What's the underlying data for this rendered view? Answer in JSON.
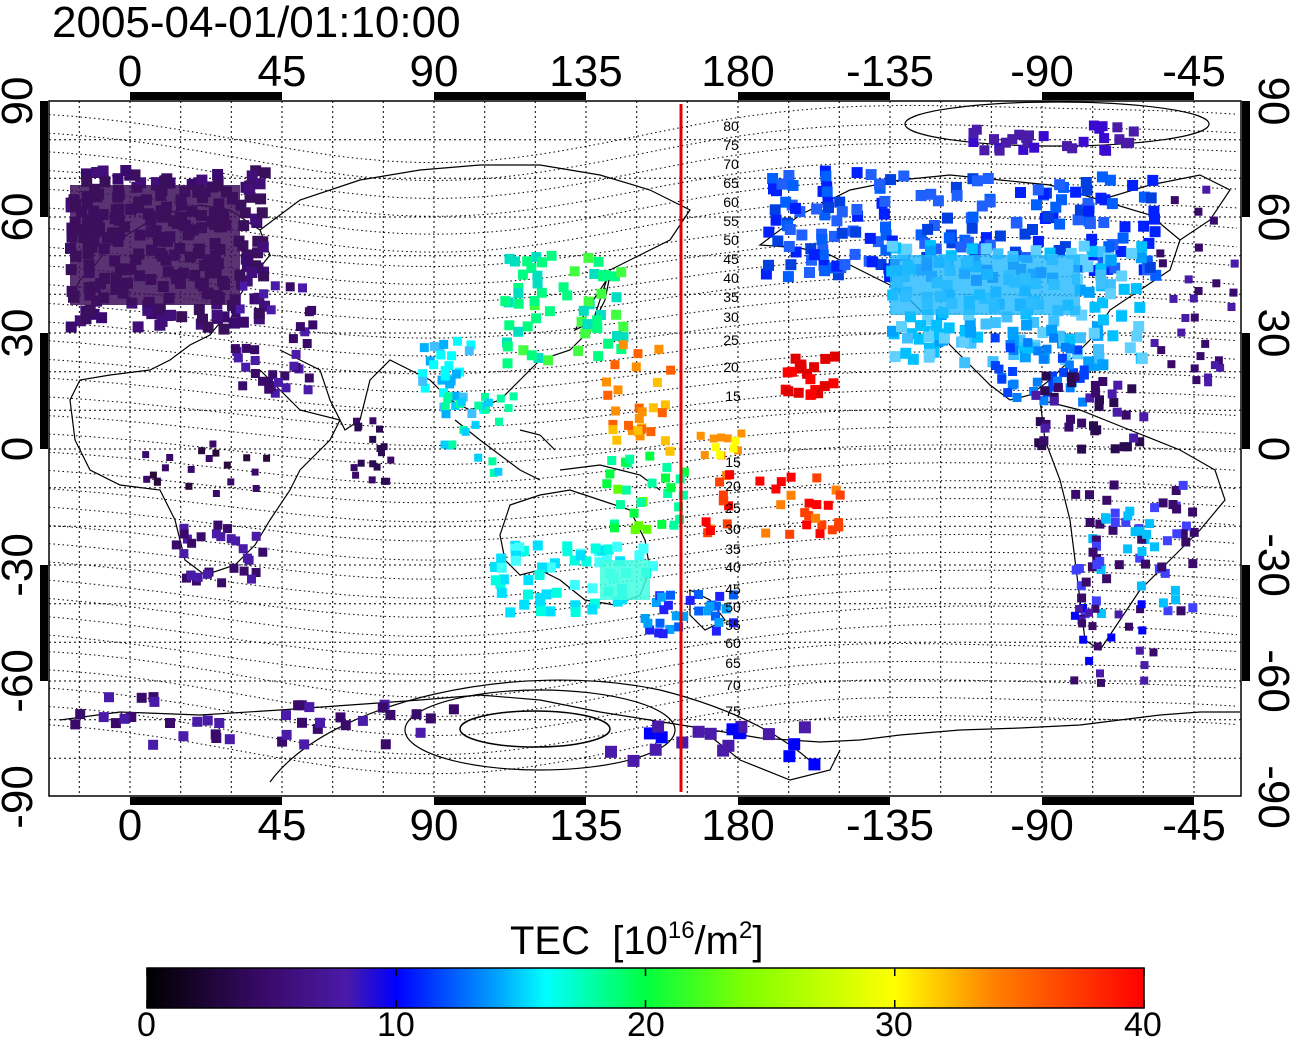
{
  "map": {
    "timestamp": "2005-04-01/01:10:00",
    "lon_ticks": [
      "0",
      "45",
      "90",
      "135",
      "180",
      "-135",
      "-90",
      "-45"
    ],
    "lat_ticks": [
      "90",
      "60",
      "30",
      "0",
      "-30",
      "-60",
      "-90"
    ],
    "contour_labels": [
      "80",
      "75",
      "70",
      "65",
      "60",
      "55",
      "50",
      "45",
      "40",
      "35",
      "30",
      "25",
      "20",
      "15",
      "15",
      "20",
      "25",
      "30",
      "35",
      "40",
      "45",
      "50",
      "55",
      "60",
      "65",
      "70",
      "75"
    ],
    "terminator_longitude": 163
  },
  "colorbar": {
    "title": "TEC",
    "unit_prefix": "[10",
    "unit_exp1": "16",
    "unit_mid": "/m",
    "unit_exp2": "2",
    "unit_suffix": "]",
    "ticks": [
      "0",
      "10",
      "20",
      "30",
      "40"
    ],
    "range": [
      0,
      40
    ]
  },
  "colors": {
    "terminator": "#e00000",
    "scale": [
      "#000000",
      "#3a0a6a",
      "#4a1aa8",
      "#0000ff",
      "#00a0ff",
      "#00ffff",
      "#00ff60",
      "#60ff00",
      "#ffff00",
      "#ff9000",
      "#ff0000"
    ]
  }
}
